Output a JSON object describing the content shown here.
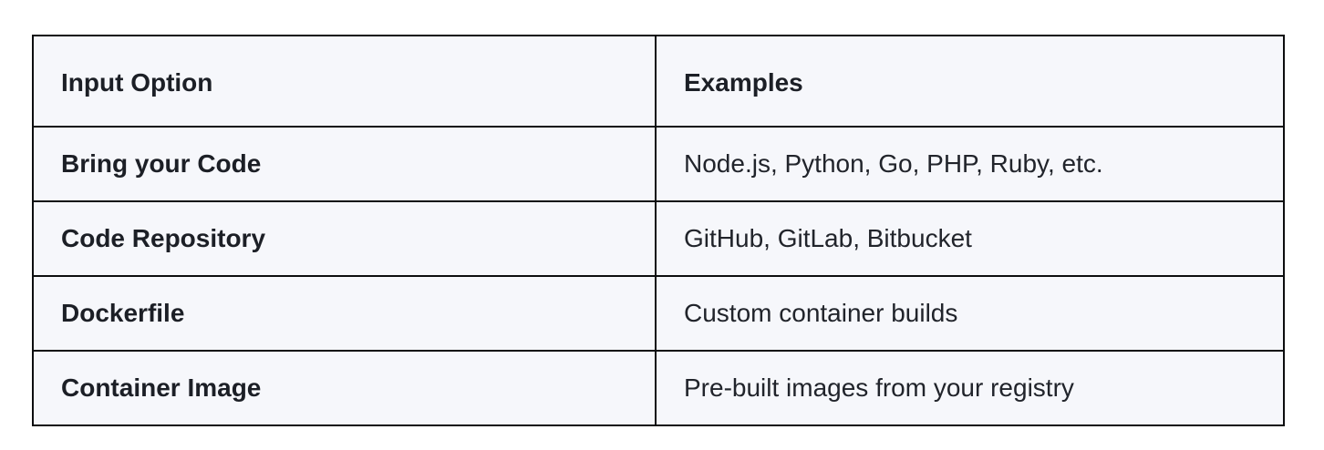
{
  "table": {
    "name": "input-options-table",
    "colors": {
      "cell_background": "#f6f7fb",
      "border": "#0c0d0f",
      "text": "#1c1f26",
      "page_background": "#ffffff"
    },
    "headers": {
      "option": "Input Option",
      "examples": "Examples"
    },
    "rows": [
      {
        "option": "Bring your Code",
        "examples": "Node.js, Python, Go, PHP, Ruby, etc."
      },
      {
        "option": "Code Repository",
        "examples": "GitHub, GitLab, Bitbucket"
      },
      {
        "option": "Dockerfile",
        "examples": "Custom container builds"
      },
      {
        "option": "Container Image",
        "examples": "Pre-built images from your registry"
      }
    ]
  }
}
